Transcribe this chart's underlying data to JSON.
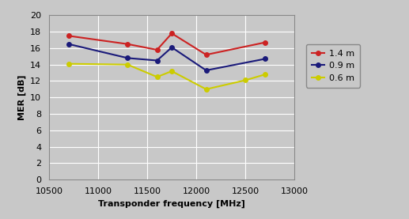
{
  "series": {
    "1.4 m": {
      "x": [
        10700,
        11300,
        11600,
        11750,
        12100,
        12700
      ],
      "y": [
        17.5,
        16.5,
        15.8,
        17.8,
        15.2,
        16.7
      ],
      "color": "#cc2222",
      "marker": "o"
    },
    "0.9 m": {
      "x": [
        10700,
        11300,
        11600,
        11750,
        12100,
        12700
      ],
      "y": [
        16.5,
        14.8,
        14.5,
        16.1,
        13.3,
        14.7
      ],
      "color": "#1a1a7a",
      "marker": "o"
    },
    "0.6 m": {
      "x": [
        10700,
        11300,
        11600,
        11750,
        12100,
        12500,
        12700
      ],
      "y": [
        14.1,
        14.0,
        12.5,
        13.2,
        11.0,
        12.1,
        12.8
      ],
      "color": "#cccc00",
      "marker": "o"
    }
  },
  "xlabel": "Transponder frequency [MHz]",
  "ylabel": "MER [dB]",
  "xlim": [
    10500,
    13000
  ],
  "ylim": [
    0,
    20
  ],
  "yticks": [
    0,
    2,
    4,
    6,
    8,
    10,
    12,
    14,
    16,
    18,
    20
  ],
  "xticks": [
    10500,
    11000,
    11500,
    12000,
    12500,
    13000
  ],
  "background_color": "#c8c8c8",
  "grid_color": "#ffffff",
  "figsize": [
    5.17,
    2.77
  ],
  "dpi": 100
}
